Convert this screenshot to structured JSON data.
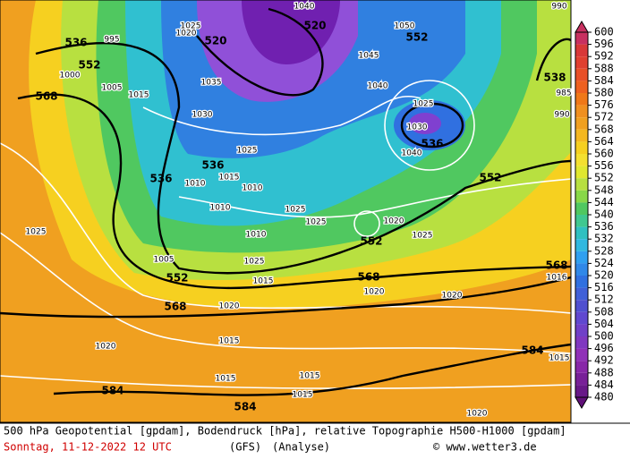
{
  "legend": {
    "ticks": [
      600,
      596,
      592,
      588,
      584,
      580,
      576,
      572,
      568,
      564,
      560,
      556,
      552,
      548,
      544,
      540,
      536,
      532,
      528,
      524,
      520,
      516,
      512,
      508,
      504,
      500,
      496,
      492,
      488,
      484,
      480
    ],
    "colors": [
      "#c83060",
      "#d83838",
      "#e04030",
      "#e85028",
      "#ee6020",
      "#f07818",
      "#f09020",
      "#f0a020",
      "#f4b820",
      "#f6d020",
      "#f4e030",
      "#e0e830",
      "#b8e040",
      "#88d848",
      "#50c860",
      "#40c890",
      "#30c0c0",
      "#30b8e0",
      "#30a0f0",
      "#3088e8",
      "#3070e0",
      "#4060d8",
      "#5050d0",
      "#6048d0",
      "#7040c8",
      "#8038c0",
      "#9030b8",
      "#8828a8",
      "#782098",
      "#681888",
      "#601078"
    ]
  },
  "contour_labels": [
    "536",
    "552",
    "568",
    "520",
    "520",
    "552",
    "536",
    "536",
    "536",
    "552",
    "552",
    "552",
    "568",
    "568",
    "568",
    "584",
    "584",
    "584",
    "538"
  ],
  "pressure_labels": [
    "995",
    "1000",
    "1005",
    "1015",
    "1020",
    "1025",
    "1030",
    "1035",
    "1040",
    "1045",
    "1040",
    "1050",
    "1025",
    "1030",
    "1040",
    "1010",
    "1015",
    "1025",
    "1010",
    "1025",
    "1020",
    "1025",
    "1010",
    "1005",
    "1025",
    "1015",
    "1020",
    "1020",
    "1020",
    "1025",
    "1020",
    "1015",
    "1015",
    "1015",
    "1015",
    "990",
    "985",
    "990",
    "1016",
    "1015",
    "1020",
    "1010",
    "1025"
  ],
  "footer": {
    "description": "500 hPa Geopotential [gpdam], Bodendruck [hPa], relative Topographie H500-H1000 [gpdam]",
    "date": "Sonntag, 11-12-2022  12 UTC",
    "model": "(GFS)",
    "run": "(Analyse)",
    "credit": "© www.wetter3.de"
  }
}
